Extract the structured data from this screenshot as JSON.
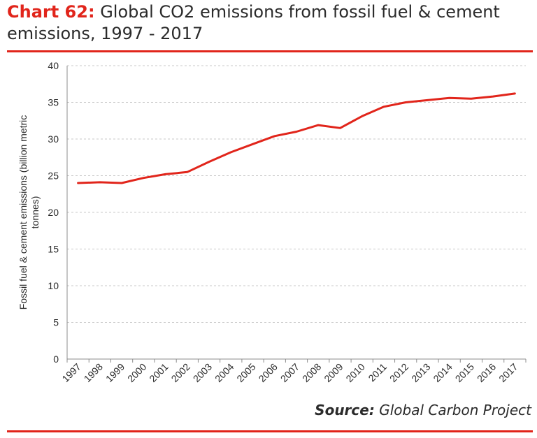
{
  "title": {
    "prefix": "Chart 62:",
    "text": "Global CO2 emissions from fossil fuel & cement emissions, 1997 - 2017"
  },
  "source": {
    "label": "Source:",
    "text": "Global Carbon Project"
  },
  "colors": {
    "accent": "#e1251b",
    "line": "#e1251b",
    "grid": "#c8c8c8",
    "axis": "#8c8c8c",
    "text": "#2b2b2b"
  },
  "chart_data": {
    "type": "line",
    "ylabel": "Fossil fuel & cement emissions (billion metric tonnes)",
    "ylim": [
      0,
      40
    ],
    "yticks": [
      0,
      5,
      10,
      15,
      20,
      25,
      30,
      35,
      40
    ],
    "grid": true,
    "categories": [
      "1997",
      "1998",
      "1999",
      "2000",
      "2001",
      "2002",
      "2003",
      "2004",
      "2005",
      "2006",
      "2007",
      "2008",
      "2009",
      "2010",
      "2011",
      "2012",
      "2013",
      "2014",
      "2015",
      "2016",
      "2017"
    ],
    "series": [
      {
        "values": [
          24.0,
          24.1,
          24.0,
          24.7,
          25.2,
          25.5,
          26.9,
          28.2,
          29.3,
          30.4,
          31.0,
          31.9,
          31.5,
          33.1,
          34.4,
          35.0,
          35.3,
          35.6,
          35.5,
          35.8,
          36.2
        ]
      }
    ]
  }
}
